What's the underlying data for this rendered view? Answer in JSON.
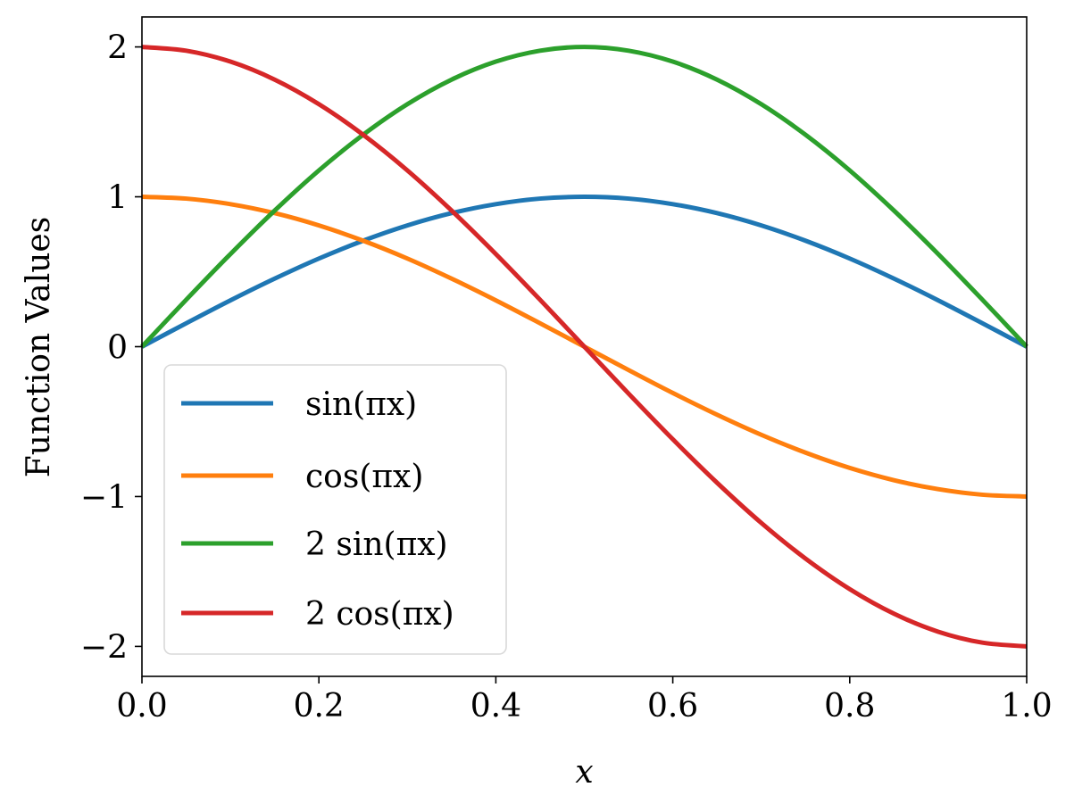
{
  "chart_data": {
    "type": "line",
    "title": "",
    "xlabel": "x",
    "ylabel": "Function Values",
    "xlim": [
      0,
      1
    ],
    "ylim": [
      -2.2,
      2.2
    ],
    "xticks": [
      0.0,
      0.2,
      0.4,
      0.6,
      0.8,
      1.0
    ],
    "xtick_labels": [
      "0.0",
      "0.2",
      "0.4",
      "0.6",
      "0.8",
      "1.0"
    ],
    "yticks": [
      -2,
      -1,
      0,
      1,
      2
    ],
    "ytick_labels": [
      "−2",
      "−1",
      "0",
      "1",
      "2"
    ],
    "grid": false,
    "legend_position": "lower-left",
    "x": [
      0,
      0.05,
      0.1,
      0.15,
      0.2,
      0.25,
      0.3,
      0.35,
      0.4,
      0.45,
      0.5,
      0.55,
      0.6,
      0.65,
      0.7,
      0.75,
      0.8,
      0.85,
      0.9,
      0.95,
      1.0
    ],
    "series": [
      {
        "name": "sin(πx)",
        "color": "#1f77b4",
        "values": [
          0,
          0.156,
          0.309,
          0.454,
          0.588,
          0.707,
          0.809,
          0.891,
          0.951,
          0.988,
          1.0,
          0.988,
          0.951,
          0.891,
          0.809,
          0.707,
          0.588,
          0.454,
          0.309,
          0.156,
          0
        ]
      },
      {
        "name": "cos(πx)",
        "color": "#ff7f0e",
        "values": [
          1.0,
          0.988,
          0.951,
          0.891,
          0.809,
          0.707,
          0.588,
          0.454,
          0.309,
          0.156,
          0,
          -0.156,
          -0.309,
          -0.454,
          -0.588,
          -0.707,
          -0.809,
          -0.891,
          -0.951,
          -0.988,
          -1.0
        ]
      },
      {
        "name": "2 sin(πx)",
        "color": "#2ca02c",
        "values": [
          0,
          0.313,
          0.618,
          0.908,
          1.176,
          1.414,
          1.618,
          1.782,
          1.902,
          1.975,
          2.0,
          1.975,
          1.902,
          1.782,
          1.618,
          1.414,
          1.176,
          0.908,
          0.618,
          0.313,
          0
        ]
      },
      {
        "name": "2 cos(πx)",
        "color": "#d62728",
        "values": [
          2.0,
          1.975,
          1.902,
          1.782,
          1.618,
          1.414,
          1.176,
          0.908,
          0.618,
          0.313,
          0,
          -0.313,
          -0.618,
          -0.908,
          -1.176,
          -1.414,
          -1.618,
          -1.782,
          -1.902,
          -1.975,
          -2.0
        ]
      }
    ]
  }
}
